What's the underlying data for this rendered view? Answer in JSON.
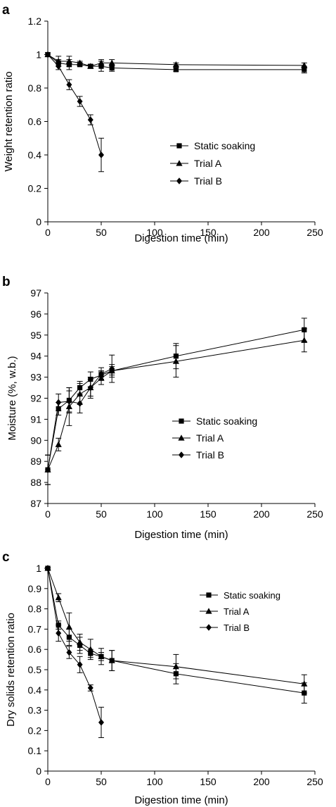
{
  "chart_data": [
    {
      "type": "line",
      "panel_label": "a",
      "xlabel": "Digestion time (min)",
      "ylabel": "Weight retention ratio",
      "xlim": [
        0,
        250
      ],
      "ylim": [
        0,
        1.2
      ],
      "x_ticks": [
        "0",
        "50",
        "100",
        "150",
        "200",
        "250"
      ],
      "y_ticks": [
        "0",
        "0.2",
        "0.4",
        "0.6",
        "0.8",
        "1",
        "1.2"
      ],
      "grid": false,
      "legend_position": "center-right",
      "series": [
        {
          "name": "Static soaking",
          "marker": "square",
          "x": [
            0,
            10,
            20,
            30,
            40,
            50,
            60,
            120,
            240
          ],
          "y": [
            1.0,
            0.95,
            0.94,
            0.94,
            0.93,
            0.93,
            0.92,
            0.91,
            0.91
          ],
          "err": [
            0.01,
            0.02,
            0.03,
            0.01,
            0.01,
            0.03,
            0.02,
            0.01,
            0.02
          ]
        },
        {
          "name": "Trial A",
          "marker": "triangle",
          "x": [
            0,
            10,
            20,
            30,
            40,
            50,
            60,
            120,
            240
          ],
          "y": [
            1.0,
            0.96,
            0.96,
            0.95,
            0.93,
            0.95,
            0.95,
            0.94,
            0.935
          ],
          "err": [
            0.01,
            0.03,
            0.03,
            0.01,
            0.01,
            0.02,
            0.02,
            0.01,
            0.015
          ]
        },
        {
          "name": "Trial B",
          "marker": "diamond",
          "x": [
            0,
            10,
            20,
            30,
            40,
            50
          ],
          "y": [
            1.0,
            0.93,
            0.82,
            0.72,
            0.61,
            0.4
          ],
          "err": [
            0.01,
            0.02,
            0.03,
            0.03,
            0.03,
            0.1
          ]
        }
      ]
    },
    {
      "type": "line",
      "panel_label": "b",
      "xlabel": "Digestion time (min)",
      "ylabel": "Moisture (%, w.b.)",
      "xlim": [
        0,
        250
      ],
      "ylim": [
        87,
        97
      ],
      "x_ticks": [
        "0",
        "50",
        "100",
        "150",
        "200",
        "250"
      ],
      "y_ticks": [
        "87",
        "88",
        "89",
        "90",
        "91",
        "92",
        "93",
        "94",
        "95",
        "96",
        "97"
      ],
      "grid": false,
      "legend_position": "center-right",
      "series": [
        {
          "name": "Static soaking",
          "marker": "square",
          "x": [
            0,
            10,
            20,
            30,
            40,
            50,
            60,
            120,
            240
          ],
          "y": [
            88.6,
            91.5,
            91.9,
            92.5,
            92.9,
            93.1,
            93.3,
            94.0,
            95.25
          ],
          "err": [
            0.7,
            0.3,
            0.6,
            0.3,
            0.35,
            0.2,
            0.2,
            0.6,
            0.55
          ]
        },
        {
          "name": "Trial A",
          "marker": "triangle",
          "x": [
            0,
            10,
            20,
            30,
            40,
            50,
            60,
            120,
            240
          ],
          "y": [
            88.6,
            89.8,
            91.6,
            92.2,
            92.5,
            92.95,
            93.3,
            93.75,
            94.75
          ],
          "err": [
            0.7,
            0.3,
            0.9,
            0.5,
            0.5,
            0.3,
            0.3,
            0.75,
            0.55
          ]
        },
        {
          "name": "Trial B",
          "marker": "diamond",
          "x": [
            0,
            10,
            20,
            30,
            40,
            50,
            60
          ],
          "y": [
            88.6,
            91.8,
            91.85,
            91.75,
            92.5,
            93.15,
            93.4
          ],
          "err": [
            0.7,
            0.4,
            0.5,
            0.45,
            0.4,
            0.3,
            0.65
          ]
        }
      ]
    },
    {
      "type": "line",
      "panel_label": "c",
      "xlabel": "Digestion time (min)",
      "ylabel": "Dry solids retention ratio",
      "xlim": [
        0,
        250
      ],
      "ylim": [
        0,
        1
      ],
      "x_ticks": [
        "0",
        "50",
        "100",
        "150",
        "200",
        "250"
      ],
      "y_ticks": [
        "0",
        "0.1",
        "0.2",
        "0.3",
        "0.4",
        "0.5",
        "0.6",
        "0.7",
        "0.8",
        "0.9",
        "1"
      ],
      "grid": false,
      "legend_position": "top-right",
      "series": [
        {
          "name": "Static soaking",
          "marker": "square",
          "x": [
            0,
            10,
            20,
            30,
            40,
            50,
            60,
            120,
            240
          ],
          "y": [
            1.0,
            0.72,
            0.66,
            0.62,
            0.58,
            0.565,
            0.545,
            0.48,
            0.385
          ],
          "err": [
            0.005,
            0.02,
            0.04,
            0.04,
            0.02,
            0.02,
            0.05,
            0.05,
            0.05
          ]
        },
        {
          "name": "Trial A",
          "marker": "triangle",
          "x": [
            0,
            10,
            20,
            30,
            40,
            50,
            60,
            120,
            240
          ],
          "y": [
            1.0,
            0.855,
            0.71,
            0.635,
            0.6,
            0.565,
            0.545,
            0.515,
            0.43
          ],
          "err": [
            0.005,
            0.02,
            0.07,
            0.04,
            0.05,
            0.04,
            0.05,
            0.06,
            0.045
          ]
        },
        {
          "name": "Trial B",
          "marker": "diamond",
          "x": [
            0,
            10,
            20,
            30,
            40,
            50
          ],
          "y": [
            1.0,
            0.68,
            0.585,
            0.525,
            0.41,
            0.24
          ],
          "err": [
            0.005,
            0.04,
            0.03,
            0.04,
            0.015,
            0.075
          ]
        }
      ]
    }
  ]
}
